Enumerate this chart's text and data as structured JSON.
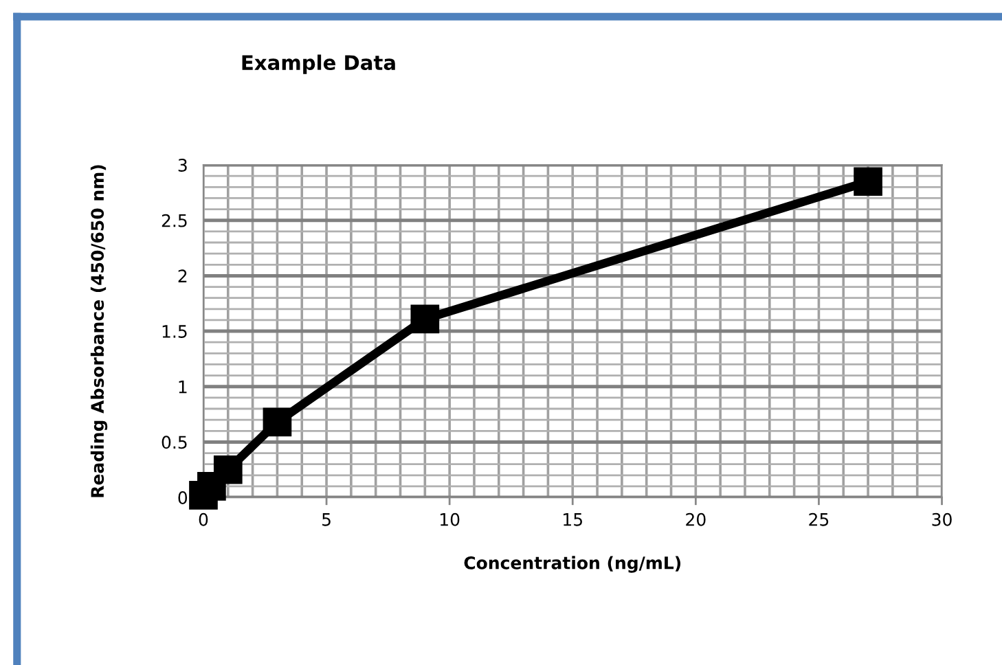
{
  "chart_data": {
    "type": "line",
    "title": "Example Data",
    "xlabel": "Concentration (ng/mL)",
    "ylabel": "Reading Absorbance (450/650 nm)",
    "x": [
      0,
      0.333,
      1,
      3,
      9,
      27
    ],
    "series": [
      {
        "color": "#000000",
        "values": [
          0.02,
          0.1,
          0.25,
          0.68,
          1.61,
          2.85
        ]
      }
    ],
    "marker": "square",
    "line_style": "solid",
    "grid": true,
    "xlim": [
      0,
      30
    ],
    "ylim": [
      0,
      3
    ],
    "xticks": [
      0,
      {
        "value": 1,
        "label": null
      },
      {
        "value": 2,
        "label": null
      },
      {
        "value": 3,
        "label": null
      },
      {
        "value": 4,
        "label": null
      },
      5,
      {
        "value": 6,
        "label": null
      },
      {
        "value": 7,
        "label": null
      },
      {
        "value": 8,
        "label": null
      },
      {
        "value": 9,
        "label": null
      },
      10,
      {
        "value": 11,
        "label": null
      },
      {
        "value": 12,
        "label": null
      },
      {
        "value": 13,
        "label": null
      },
      {
        "value": 14,
        "label": null
      },
      15,
      {
        "value": 16,
        "label": null
      },
      {
        "value": 17,
        "label": null
      },
      {
        "value": 18,
        "label": null
      },
      {
        "value": 19,
        "label": null
      },
      20,
      {
        "value": 21,
        "label": null
      },
      {
        "value": 22,
        "label": null
      },
      {
        "value": 23,
        "label": null
      },
      {
        "value": 24,
        "label": null
      },
      25,
      {
        "value": 26,
        "label": null
      },
      {
        "value": 27,
        "label": null
      },
      {
        "value": 28,
        "label": null
      },
      {
        "value": 29,
        "label": null
      },
      30
    ],
    "yticks": [
      0,
      {
        "value": 0.1,
        "label": null
      },
      {
        "value": 0.2,
        "label": null
      },
      {
        "value": 0.3,
        "label": null
      },
      {
        "value": 0.4,
        "label": null
      },
      0.5,
      {
        "value": 0.6,
        "label": null
      },
      {
        "value": 0.7,
        "label": null
      },
      {
        "value": 0.8,
        "label": null
      },
      {
        "value": 0.9,
        "label": null
      },
      1,
      {
        "value": 1.1,
        "label": null
      },
      {
        "value": 1.2,
        "label": null
      },
      {
        "value": 1.3,
        "label": null
      },
      {
        "value": 1.4,
        "label": null
      },
      1.5,
      {
        "value": 1.6,
        "label": null
      },
      {
        "value": 1.7,
        "label": null
      },
      {
        "value": 1.8,
        "label": null
      },
      {
        "value": 1.9,
        "label": null
      },
      2,
      {
        "value": 2.1,
        "label": null
      },
      {
        "value": 2.2,
        "label": null
      },
      {
        "value": 2.3,
        "label": null
      },
      {
        "value": 2.4,
        "label": null
      },
      2.5,
      {
        "value": 2.6,
        "label": null
      },
      {
        "value": 2.7,
        "label": null
      },
      {
        "value": 2.8,
        "label": null
      },
      {
        "value": 2.9,
        "label": null
      },
      3
    ]
  }
}
